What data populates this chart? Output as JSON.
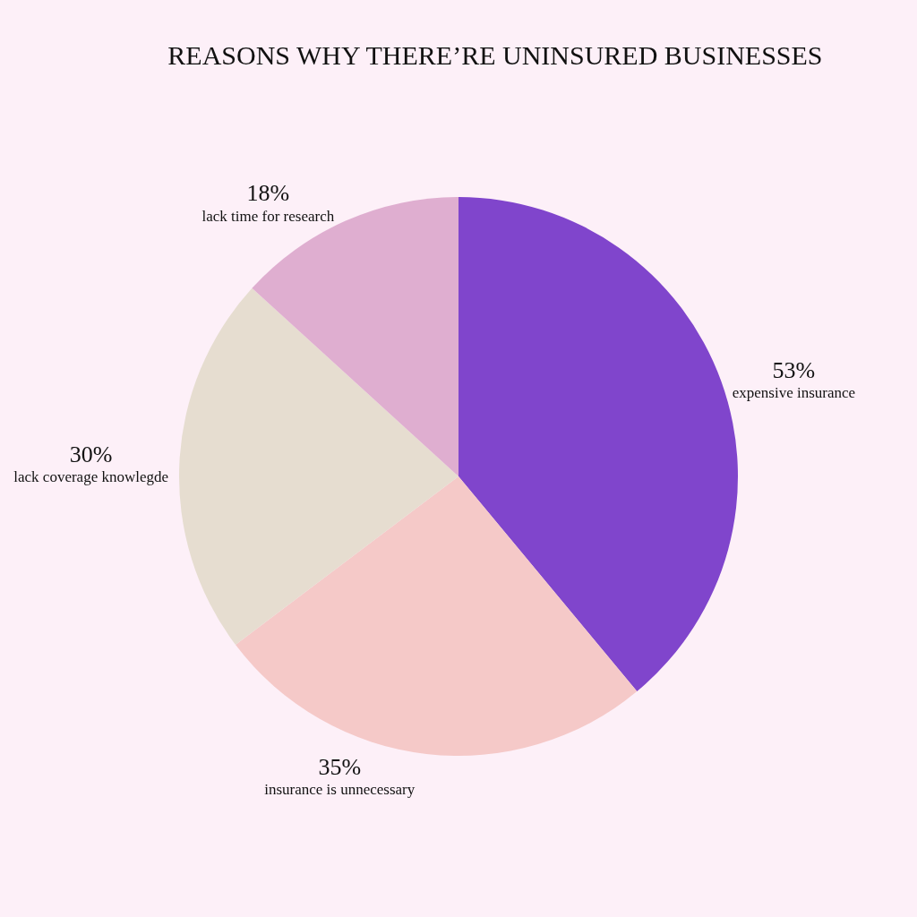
{
  "chart_data": {
    "type": "pie",
    "title": "REASONS WHY THERE’RE UNINSURED BUSINESSES",
    "categories": [
      "expensive insurance",
      "insurance is unnecessary",
      "lack coverage knowlegde",
      "lack time for research"
    ],
    "values": [
      53,
      35,
      30,
      18
    ],
    "value_labels": [
      "53%",
      "35%",
      "30%",
      "18%"
    ],
    "colors": [
      "#8045cc",
      "#f5c9c8",
      "#e6ddd0",
      "#dfaed0"
    ]
  }
}
